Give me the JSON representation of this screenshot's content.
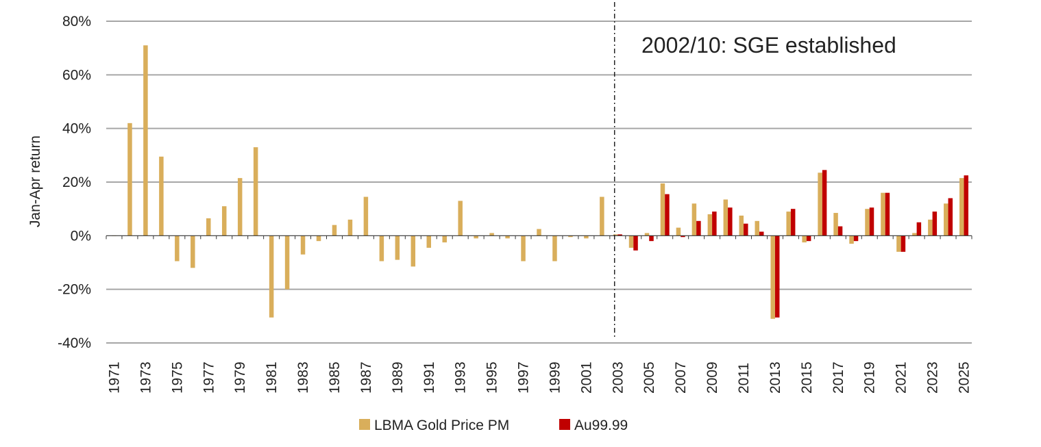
{
  "chart_data": {
    "type": "bar",
    "title": "",
    "xlabel": "",
    "ylabel": "Jan-Apr return",
    "ylim": [
      -40,
      80
    ],
    "yticks": [
      80,
      60,
      40,
      20,
      0,
      -20,
      -40
    ],
    "ytick_labels": [
      "80%",
      "60%",
      "40%",
      "20%",
      "0%",
      "-20%",
      "-40%"
    ],
    "categories": [
      1971,
      1972,
      1973,
      1974,
      1975,
      1976,
      1977,
      1978,
      1979,
      1980,
      1981,
      1982,
      1983,
      1984,
      1985,
      1986,
      1987,
      1988,
      1989,
      1990,
      1991,
      1992,
      1993,
      1994,
      1995,
      1996,
      1997,
      1998,
      1999,
      2000,
      2001,
      2002,
      2003,
      2004,
      2005,
      2006,
      2007,
      2008,
      2009,
      2010,
      2011,
      2012,
      2013,
      2014,
      2015,
      2016,
      2017,
      2018,
      2019,
      2020,
      2021,
      2022,
      2023,
      2024,
      2025
    ],
    "xtick_labels": [
      "1971",
      "1973",
      "1975",
      "1977",
      "1979",
      "1981",
      "1983",
      "1985",
      "1987",
      "1989",
      "1991",
      "1993",
      "1995",
      "1997",
      "1999",
      "2001",
      "2003",
      "2005",
      "2007",
      "2009",
      "2011",
      "2013",
      "2015",
      "2017",
      "2019",
      "2021",
      "2023",
      "2025"
    ],
    "series": [
      {
        "name": "LBMA Gold Price PM",
        "color": "#D9AE5B",
        "values": [
          0,
          42,
          71,
          29.5,
          -9.5,
          -12,
          6.5,
          11,
          21.5,
          33,
          -30.5,
          -20,
          -7,
          -2,
          4,
          6,
          14.5,
          -9.5,
          -9,
          -11.5,
          -4.5,
          -2.5,
          13,
          -1,
          1,
          -1,
          -9.5,
          2.5,
          -9.5,
          -0.5,
          -1,
          14.5,
          0.5,
          -4.5,
          1,
          19.5,
          3,
          12,
          8,
          13.5,
          7.5,
          5.5,
          -31,
          9,
          -2.5,
          23.5,
          8.5,
          -3,
          10,
          16,
          -6,
          1,
          6,
          12,
          21.5
        ]
      },
      {
        "name": "Au99.99",
        "color": "#C00000",
        "values": [
          null,
          null,
          null,
          null,
          null,
          null,
          null,
          null,
          null,
          null,
          null,
          null,
          null,
          null,
          null,
          null,
          null,
          null,
          null,
          null,
          null,
          null,
          null,
          null,
          null,
          null,
          null,
          null,
          null,
          null,
          null,
          null,
          0.5,
          -5.5,
          -2,
          15.5,
          -0.5,
          5.5,
          9,
          10.5,
          4.5,
          1.5,
          -30.5,
          10,
          -2,
          24.5,
          3.5,
          -2,
          10.5,
          16,
          -6,
          5,
          9,
          14,
          22.5
        ]
      }
    ],
    "annotations": [
      {
        "text": "2002/10: SGE established",
        "x": 2002.8,
        "style": "dash-dot vertical line"
      }
    ],
    "legend_position": "bottom-center",
    "grid": true
  }
}
